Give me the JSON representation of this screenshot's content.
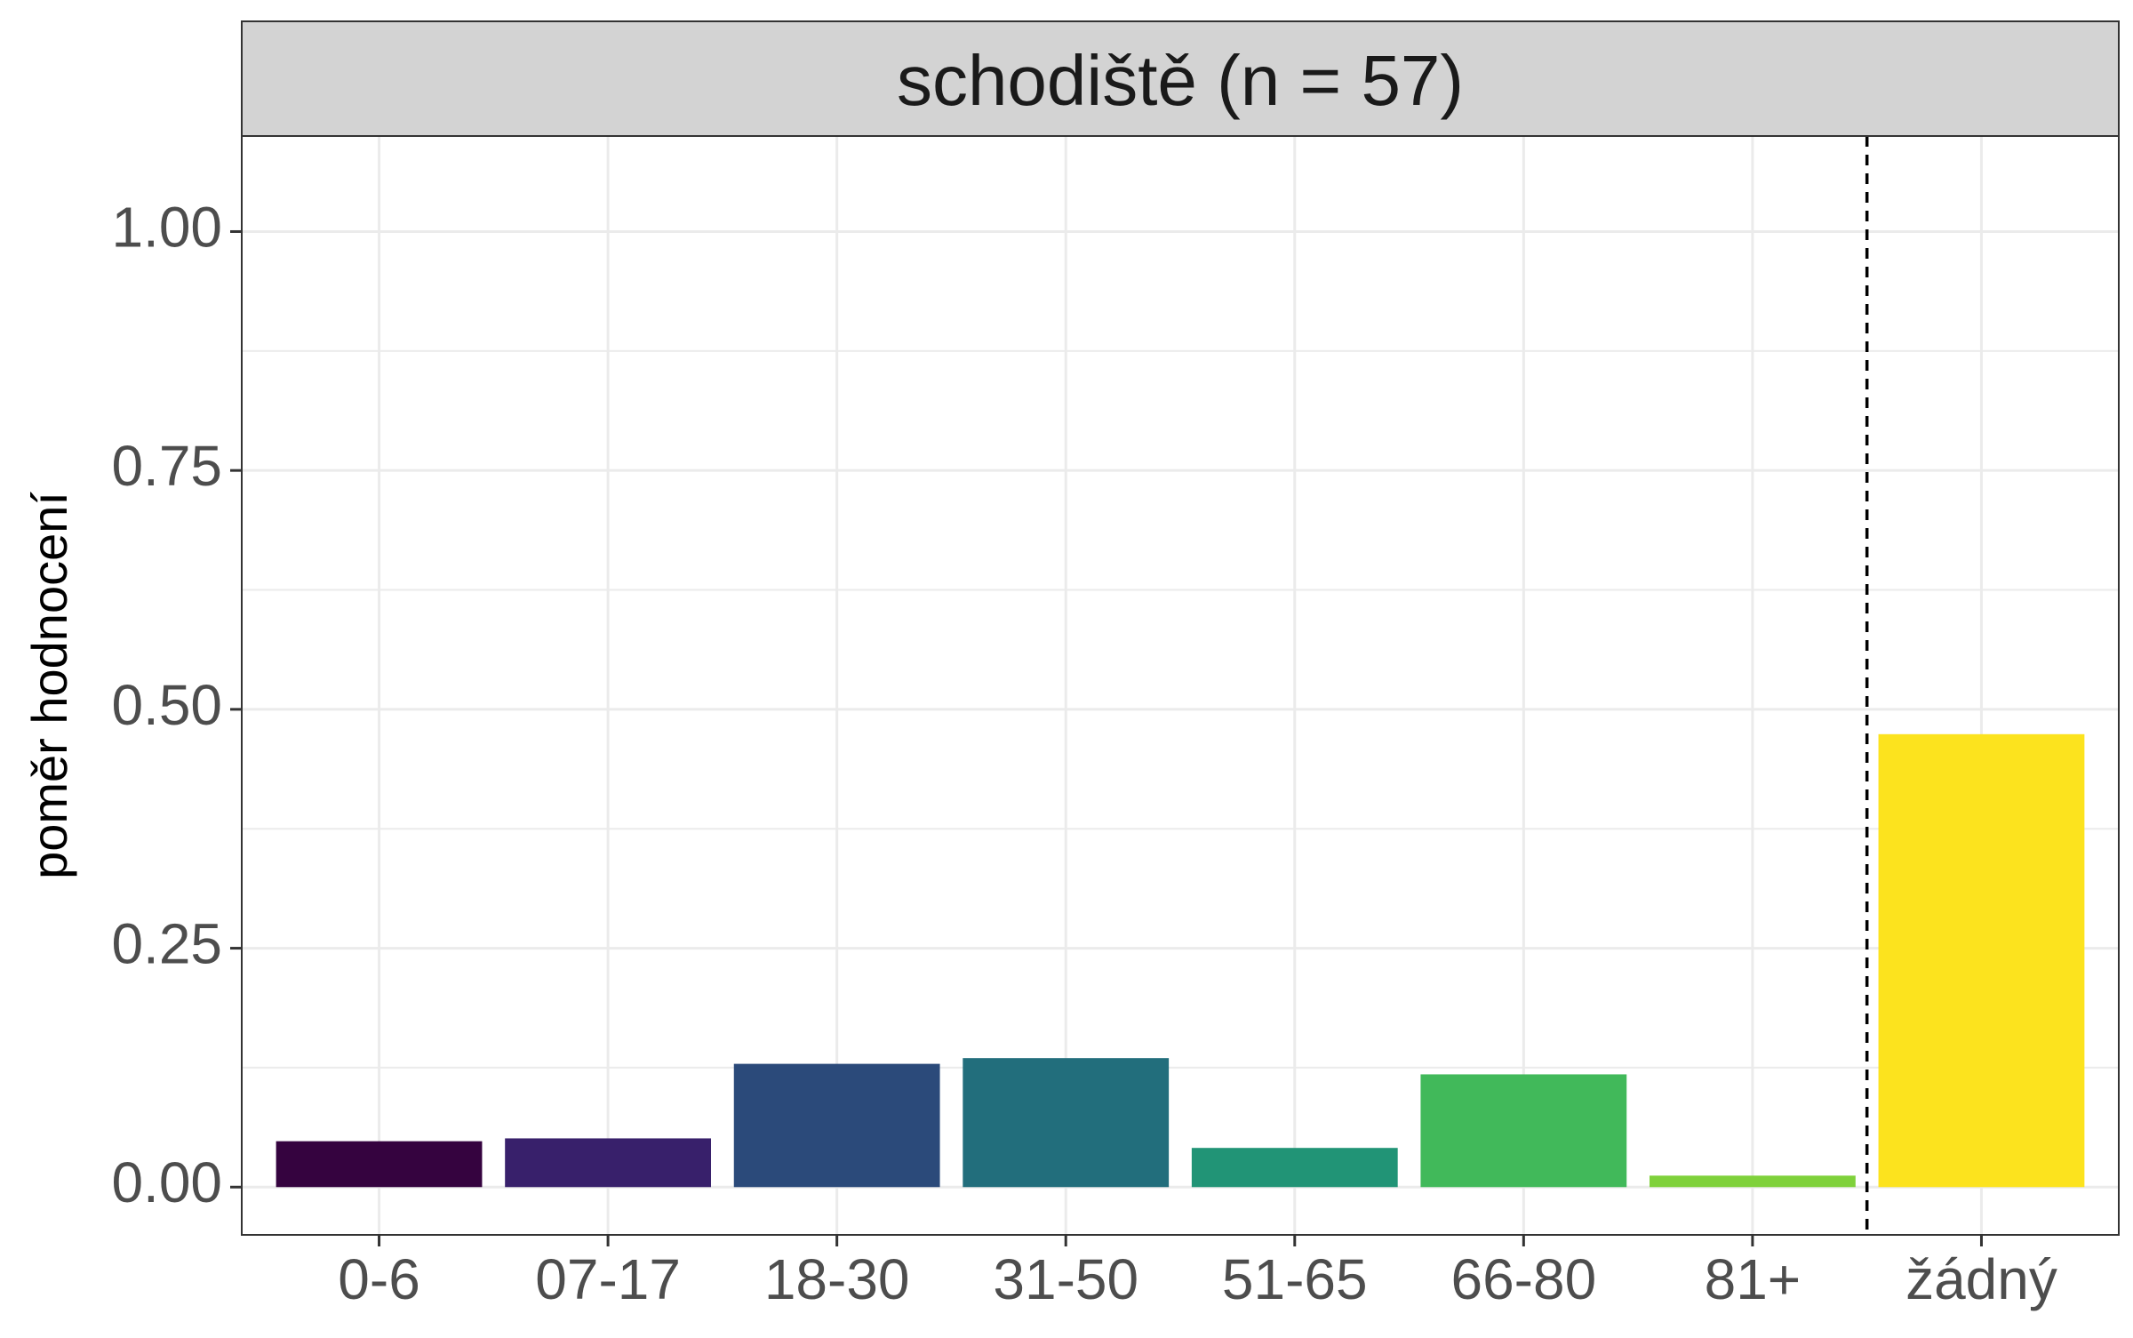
{
  "chart_data": {
    "type": "bar",
    "facet_title": "schodiště (n = 57)",
    "title": "",
    "xlabel": "",
    "ylabel": "poměr hodnocení",
    "categories": [
      "0-6",
      "07-17",
      "18-30",
      "31-50",
      "51-65",
      "66-80",
      "81+",
      "žádný"
    ],
    "values": [
      0.048,
      0.051,
      0.129,
      0.135,
      0.041,
      0.118,
      0.012,
      0.474
    ],
    "colors": [
      "#35033F",
      "#38206B",
      "#2B4A7A",
      "#226E7C",
      "#219476",
      "#41B95A",
      "#7FD13B",
      "#FCE31E"
    ],
    "ylim": [
      -0.05,
      1.1
    ],
    "y_ticks": [
      0.0,
      0.25,
      0.5,
      0.75,
      1.0
    ],
    "y_tick_labels": [
      "0.00",
      "0.25",
      "0.50",
      "0.75",
      "1.00"
    ],
    "reference_line": {
      "between": [
        "81+",
        "žádný"
      ],
      "style": "dashed",
      "color": "#000000"
    },
    "grid": true,
    "legend": "none",
    "theme": {
      "strip_fill": "#D3D3D3",
      "panel_border": "#333333",
      "grid_color": "#EBEBEB",
      "tick_text": "#4D4D4D"
    }
  }
}
